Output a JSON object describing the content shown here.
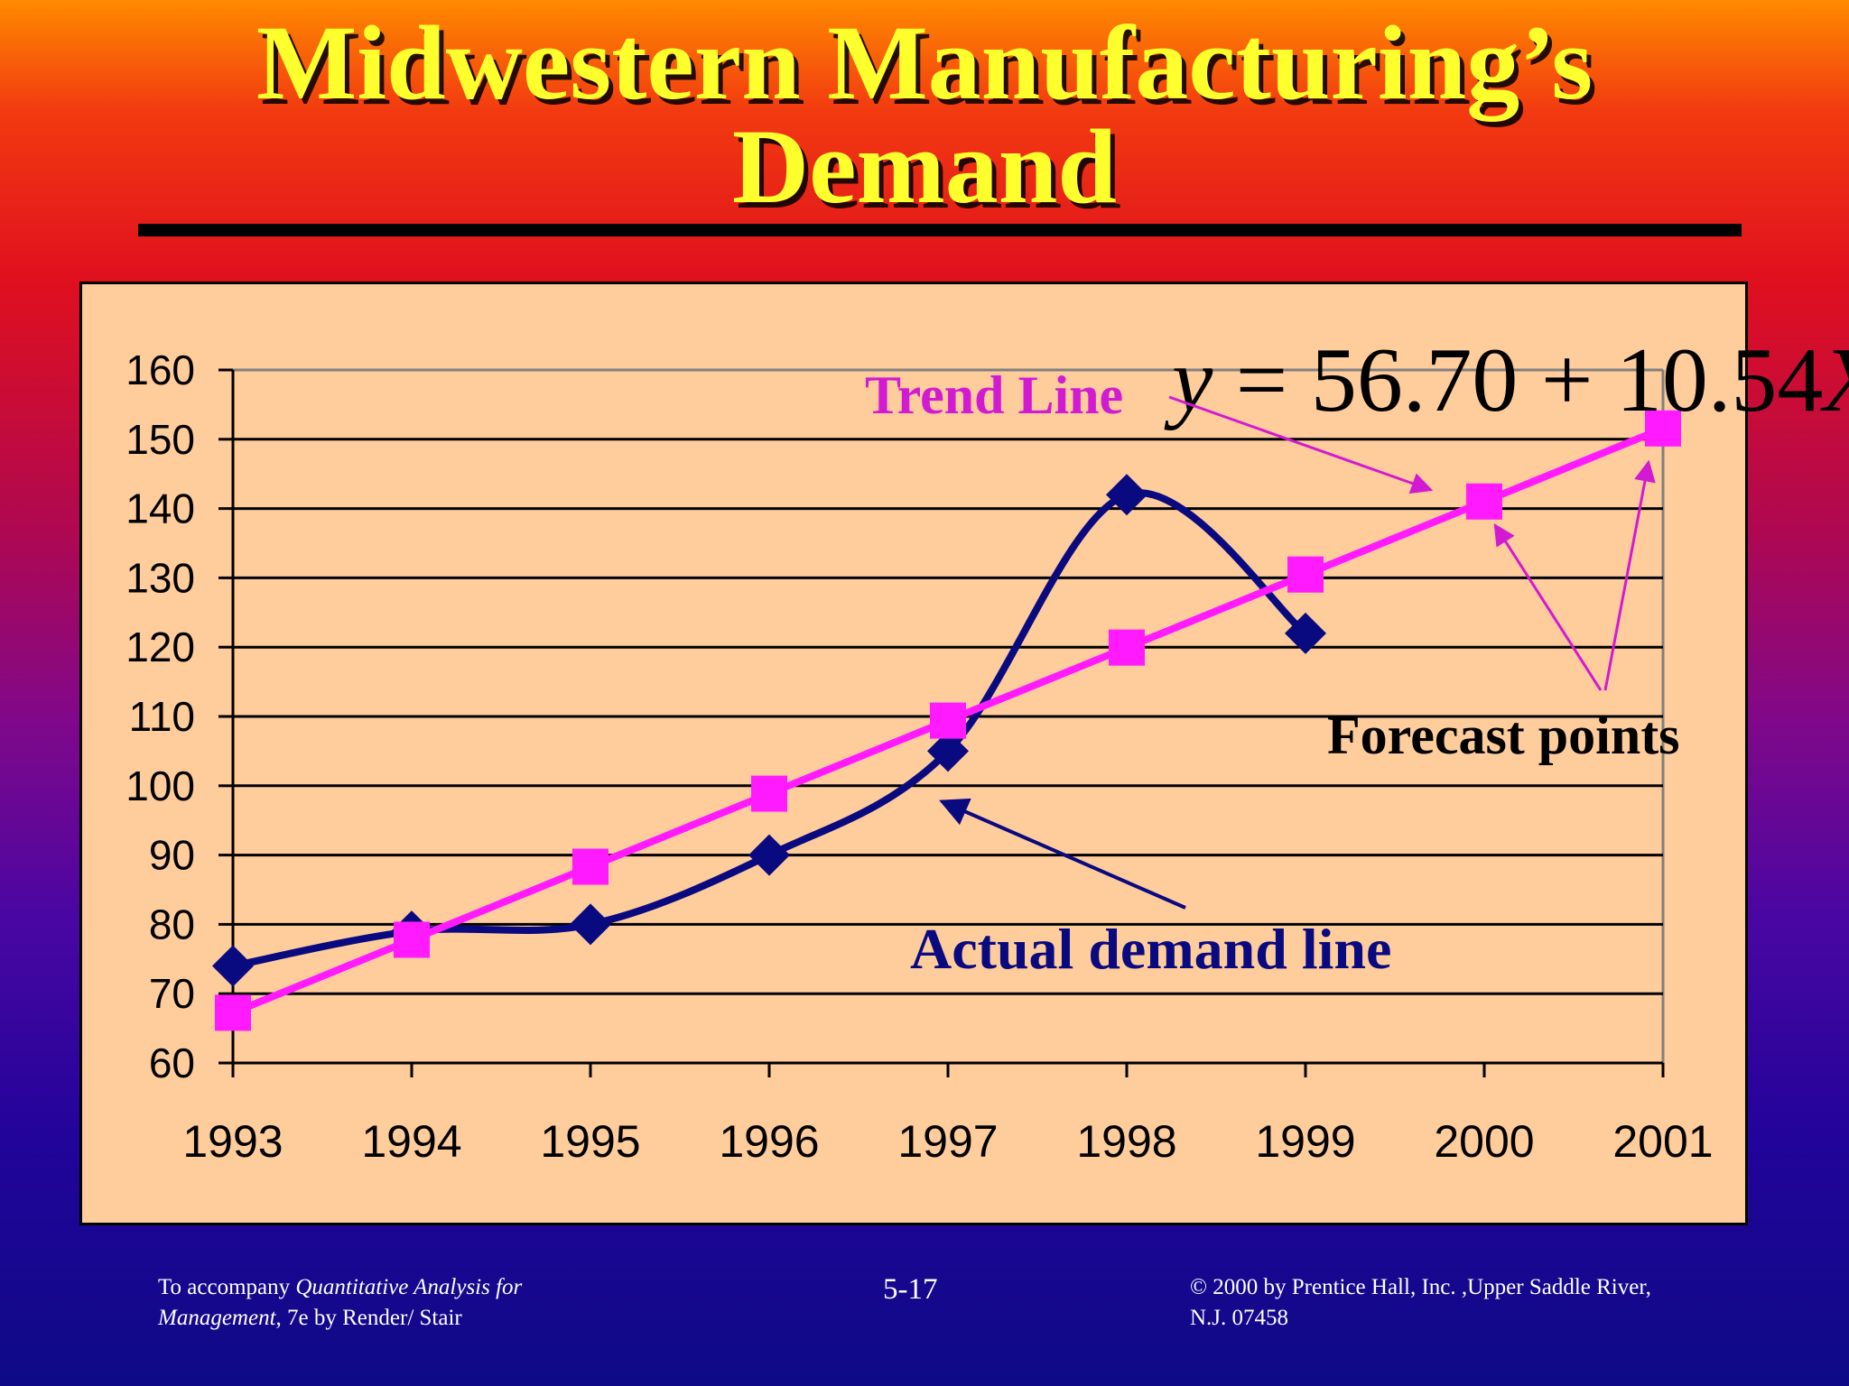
{
  "slide": {
    "title_line1": "Midwestern Manufacturing’s",
    "title_line2": "Demand",
    "footer_left_line1_plain": "To accompany ",
    "footer_left_line1_italic": "Quantitative Analysis for",
    "footer_left_line2_italic": "Management",
    "footer_left_line2_plain": ", 7e by Render/ Stair",
    "page_number": "5-17",
    "footer_right_line1": "© 2000 by Prentice Hall, Inc. ,Upper Saddle River,",
    "footer_right_line2": "N.J. 07458"
  },
  "colors": {
    "title": "#ffff2e",
    "actual_series": "#0a0a80",
    "trend_series": "#ff1aff",
    "trend_label": "#d21ad2",
    "panel": "#ffcc9c"
  },
  "chart_data": {
    "type": "line",
    "x": [
      "1993",
      "1994",
      "1995",
      "1996",
      "1997",
      "1998",
      "1999",
      "2000",
      "2001"
    ],
    "ylim": [
      60,
      160
    ],
    "yticks": [
      60,
      70,
      80,
      90,
      100,
      110,
      120,
      130,
      140,
      150,
      160
    ],
    "grid": true,
    "series": [
      {
        "name": "Actual demand line",
        "marker": "diamond",
        "color": "#0a0a80",
        "smooth": true,
        "values": [
          74,
          79,
          80,
          90,
          105,
          142,
          122,
          null,
          null
        ]
      },
      {
        "name": "Trend Line",
        "marker": "square",
        "color": "#ff1aff",
        "smooth": false,
        "values": [
          67.24,
          77.78,
          88.32,
          98.86,
          109.4,
          119.94,
          130.48,
          141.02,
          151.56
        ]
      }
    ],
    "annotations": {
      "trend_label": "Trend Line",
      "equation": {
        "lhs": "y",
        "eq": " = ",
        "num": "56.70 + 10.54",
        "var": "X"
      },
      "forecast_label": "Forecast points",
      "actual_label": "Actual demand line"
    }
  }
}
